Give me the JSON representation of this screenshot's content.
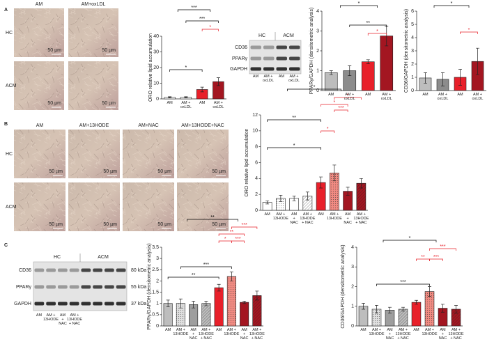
{
  "figure": {
    "panel_labels": [
      "A",
      "B",
      "C"
    ],
    "scale_bar": "50 µm",
    "panel_a": {
      "columns": [
        "AM",
        "AM+oxLDL"
      ],
      "rows": [
        "HC",
        "ACM"
      ],
      "blot": {
        "groups": [
          "HC",
          "ACM"
        ],
        "proteins": [
          "CD36",
          "PPARγ",
          "GAPDH"
        ],
        "lanes": [
          "AM",
          "AM + oxLDL",
          "AM",
          "AM + oxLDL"
        ]
      }
    },
    "panel_b": {
      "columns": [
        "AM",
        "AM+13HODE",
        "AM+NAC",
        "AM+13HODE+NAC"
      ],
      "rows": [
        "HC",
        "ACM"
      ]
    },
    "panel_c": {
      "blot": {
        "groups": [
          "HC",
          "ACM"
        ],
        "proteins": [
          "CD36",
          "PPARγ",
          "GAPDH"
        ],
        "sizes": [
          "80 kDa",
          "55 kDa",
          "37 kDa"
        ],
        "lanes": [
          "AM",
          "AM + 13HODE",
          "AM + NAC",
          "AM + 13HODE + NAC"
        ]
      }
    }
  },
  "chart_data": [
    {
      "type": "bar",
      "y_label": "ORO relative lipid accumulation",
      "categories": [
        "AM",
        "AM + oxLDL",
        "AM",
        "AM + oxLDL"
      ],
      "values": [
        1,
        1,
        6,
        11
      ],
      "errors": [
        0.4,
        0.4,
        1.5,
        2.5
      ],
      "colors": [
        "#ffffff",
        "#ffffff",
        "#e8202a",
        "#a31621"
      ],
      "patterns": [
        "none",
        "none",
        "none",
        "none"
      ],
      "ylim": [
        0,
        40
      ],
      "yticks": [
        0,
        10,
        20,
        30,
        40
      ],
      "annotations": [
        "***",
        "***",
        "*",
        "*"
      ],
      "annotation_colors": [
        "#000000",
        "#000000",
        "#e8202a",
        "#000000"
      ]
    },
    {
      "type": "bar",
      "y_label": "PPARγ/GAPDH (densitometric analysis)",
      "categories": [
        "AM",
        "AM + oxLDL",
        "AM",
        "AM + oxLDL"
      ],
      "values": [
        0.9,
        1.0,
        1.45,
        2.75
      ],
      "errors": [
        0.1,
        0.25,
        0.1,
        0.5
      ],
      "colors": [
        "#bdbdbd",
        "#8c8c8c",
        "#e8202a",
        "#a31621"
      ],
      "patterns": [
        "none",
        "none",
        "none",
        "none"
      ],
      "ylim": [
        0,
        4
      ],
      "yticks": [
        0,
        1,
        2,
        3,
        4
      ],
      "annotations": [
        "*",
        "**",
        "*"
      ],
      "annotation_colors": [
        "#000000",
        "#000000",
        "#e8202a"
      ]
    },
    {
      "type": "bar",
      "y_label": "CD36/GAPDH (densitometric analysis)",
      "categories": [
        "AM",
        "AM + oxLDL",
        "AM",
        "AM + oxLDL"
      ],
      "values": [
        0.95,
        0.85,
        1.0,
        2.2
      ],
      "errors": [
        0.4,
        0.5,
        0.6,
        1.0
      ],
      "colors": [
        "#bdbdbd",
        "#8c8c8c",
        "#e8202a",
        "#a31621"
      ],
      "patterns": [
        "none",
        "none",
        "none",
        "none"
      ],
      "ylim": [
        0,
        6
      ],
      "yticks": [
        0,
        1,
        2,
        3,
        4,
        5,
        6
      ],
      "annotations": [
        "*",
        "*"
      ],
      "annotation_colors": [
        "#000000",
        "#e8202a"
      ]
    },
    {
      "type": "bar",
      "y_label": "ORO relative lipid accumulation",
      "categories": [
        "AM",
        "AM + 13HODE",
        "AM + NAC",
        "AM + 13HODE + NAC",
        "AM",
        "AM + 13HODE",
        "AM + NAC",
        "AM + 13HODE + NAC"
      ],
      "values": [
        1.0,
        1.5,
        1.5,
        1.8,
        3.5,
        4.7,
        2.4,
        3.4
      ],
      "errors": [
        0.2,
        0.4,
        0.3,
        0.5,
        0.7,
        1.0,
        0.5,
        0.6
      ],
      "colors": [
        "#ffffff",
        "#ffffff",
        "#ffffff",
        "#ffffff",
        "#e8202a",
        "#f28b82",
        "#a31621",
        "#a31621"
      ],
      "patterns": [
        "none",
        "dots",
        "none",
        "hatch",
        "none",
        "dots",
        "none",
        "hatch"
      ],
      "ylim": [
        0,
        12
      ],
      "yticks": [
        0,
        2,
        4,
        6,
        8,
        10,
        12
      ],
      "annotations": [
        "*",
        "*",
        "*",
        "***",
        "*",
        "**",
        "*"
      ],
      "annotation_colors": [
        "#000000",
        "#e8202a",
        "#e8202a",
        "#e8202a",
        "#e8202a",
        "#000000",
        "#000000"
      ]
    },
    {
      "type": "bar",
      "y_label": "PPARγ/GAPDH (densitometric analysis)",
      "categories": [
        "AM",
        "AM + 13HODE",
        "AM + NAC",
        "AM + 13HODE + NAC",
        "AM",
        "AM + 13HODE",
        "AM + NAC",
        "AM + 13HODE + NAC"
      ],
      "values": [
        1.0,
        1.0,
        0.95,
        1.0,
        1.7,
        2.2,
        1.05,
        1.35
      ],
      "errors": [
        0.15,
        0.2,
        0.15,
        0.1,
        0.15,
        0.2,
        0.05,
        0.2
      ],
      "colors": [
        "#bdbdbd",
        "#e0e0e0",
        "#9e9e9e",
        "#bdbdbd",
        "#e8202a",
        "#f28b82",
        "#a31621",
        "#a31621"
      ],
      "patterns": [
        "none",
        "dots",
        "none",
        "hatch",
        "none",
        "dots",
        "none",
        "hatch"
      ],
      "ylim": [
        0,
        3.5
      ],
      "yticks": [
        0,
        0.5,
        1,
        1.5,
        2,
        2.5,
        3,
        3.5
      ],
      "annotations": [
        "**",
        "***",
        "**",
        "*",
        "***",
        "***",
        "**"
      ],
      "annotation_colors": [
        "#000000",
        "#e8202a",
        "#e8202a",
        "#e8202a",
        "#e8202a",
        "#000000",
        "#000000"
      ]
    },
    {
      "type": "bar",
      "y_label": "CD36/GAPDH (densitometric analysis)",
      "categories": [
        "AM",
        "AM + 13HODE",
        "AM + NAC",
        "AM + 13HODE + NAC",
        "AM",
        "AM + 13HODE",
        "AM + NAC",
        "AM + 13HODE + NAC"
      ],
      "values": [
        1.0,
        0.85,
        0.8,
        0.85,
        1.2,
        1.75,
        0.9,
        0.85
      ],
      "errors": [
        0.15,
        0.2,
        0.15,
        0.1,
        0.1,
        0.25,
        0.2,
        0.2
      ],
      "colors": [
        "#bdbdbd",
        "#e0e0e0",
        "#9e9e9e",
        "#bdbdbd",
        "#e8202a",
        "#f28b82",
        "#a31621",
        "#a31621"
      ],
      "patterns": [
        "none",
        "dots",
        "none",
        "hatch",
        "none",
        "dots",
        "none",
        "hatch"
      ],
      "ylim": [
        0,
        4
      ],
      "yticks": [
        0,
        1,
        2,
        3,
        4
      ],
      "annotations": [
        "*",
        "***",
        "**",
        "***",
        "***"
      ],
      "annotation_colors": [
        "#000000",
        "#e8202a",
        "#e8202a",
        "#e8202a",
        "#000000"
      ]
    }
  ]
}
